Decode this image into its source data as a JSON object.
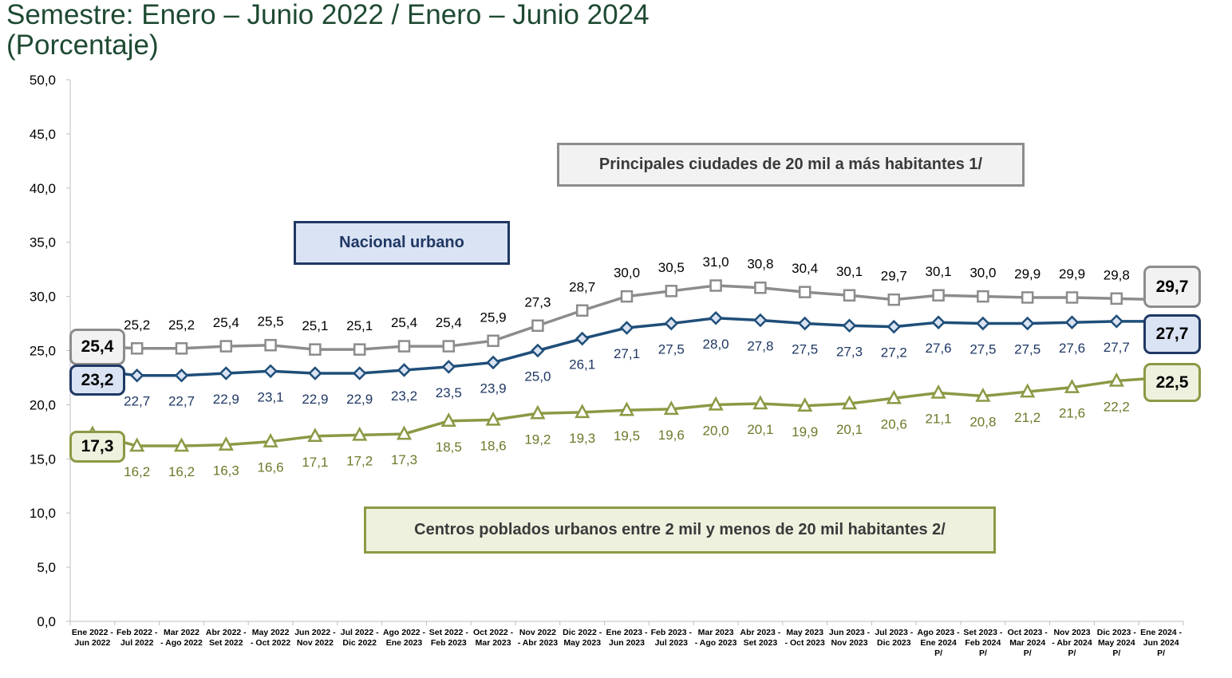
{
  "title": {
    "line1": "Semestre: Enero – Junio 2022 / Enero – Junio 2024",
    "line2": "(Porcentaje)"
  },
  "chart_data": {
    "type": "line",
    "ylim": [
      0,
      50
    ],
    "yticks": [
      "0,0",
      "5,0",
      "10,0",
      "15,0",
      "20,0",
      "25,0",
      "30,0",
      "35,0",
      "40,0",
      "45,0",
      "50,0"
    ],
    "categories": [
      [
        "Ene 2022 -",
        "Jun 2022"
      ],
      [
        "Feb 2022 -",
        "Jul 2022"
      ],
      [
        "Mar 2022",
        "- Ago 2022"
      ],
      [
        "Abr 2022 -",
        "Set 2022"
      ],
      [
        "May 2022",
        "- Oct 2022"
      ],
      [
        "Jun 2022 -",
        "Nov 2022"
      ],
      [
        "Jul 2022 -",
        "Dic 2022"
      ],
      [
        "Ago 2022 -",
        "Ene 2023"
      ],
      [
        "Set 2022 -",
        "Feb 2023"
      ],
      [
        "Oct 2022 -",
        "Mar 2023"
      ],
      [
        "Nov 2022",
        "- Abr 2023"
      ],
      [
        "Dic 2022 -",
        "May 2023"
      ],
      [
        "Ene 2023 -",
        "Jun 2023"
      ],
      [
        "Feb 2023 -",
        "Jul 2023"
      ],
      [
        "Mar 2023",
        "- Ago 2023"
      ],
      [
        "Abr 2023 -",
        "Set 2023"
      ],
      [
        "May 2023",
        "- Oct 2023"
      ],
      [
        "Jun 2023 -",
        "Nov 2023"
      ],
      [
        "Jul 2023 -",
        "Dic 2023"
      ],
      [
        "Ago 2023 -",
        "Ene 2024",
        "P/"
      ],
      [
        "Set 2023 -",
        "Feb 2024",
        "P/"
      ],
      [
        "Oct 2023 -",
        "Mar 2024",
        "P/"
      ],
      [
        "Nov 2023",
        "- Abr 2024",
        "P/"
      ],
      [
        "Dic 2023 -",
        "May 2024",
        "P/"
      ],
      [
        "Ene 2024 -",
        "Jun 2024",
        "P/"
      ]
    ],
    "series": [
      {
        "name": "Principales ciudades de 20 mil a más habitantes 1/",
        "color": "#8c8c8c",
        "marker": "square",
        "values": [
          25.4,
          25.2,
          25.2,
          25.4,
          25.5,
          25.1,
          25.1,
          25.4,
          25.4,
          25.9,
          27.3,
          28.7,
          30.0,
          30.5,
          31.0,
          30.8,
          30.4,
          30.1,
          29.7,
          30.1,
          30.0,
          29.9,
          29.9,
          29.8,
          29.7
        ],
        "labels": [
          "25,4",
          "25,2",
          "25,2",
          "25,4",
          "25,5",
          "25,1",
          "25,1",
          "25,4",
          "25,4",
          "25,9",
          "27,3",
          "28,7",
          "30,0",
          "30,5",
          "31,0",
          "30,8",
          "30,4",
          "30,1",
          "29,7",
          "30,1",
          "30,0",
          "29,9",
          "29,9",
          "29,8",
          "29,7"
        ]
      },
      {
        "name": "Nacional urbano",
        "color": "#1f4e79",
        "marker": "diamond",
        "values": [
          23.2,
          22.7,
          22.7,
          22.9,
          23.1,
          22.9,
          22.9,
          23.2,
          23.5,
          23.9,
          25.0,
          26.1,
          27.1,
          27.5,
          28.0,
          27.8,
          27.5,
          27.3,
          27.2,
          27.6,
          27.5,
          27.5,
          27.6,
          27.7,
          27.7
        ],
        "labels": [
          "23,2",
          "22,7",
          "22,7",
          "22,9",
          "23,1",
          "22,9",
          "22,9",
          "23,2",
          "23,5",
          "23,9",
          "25,0",
          "26,1",
          "27,1",
          "27,5",
          "28,0",
          "27,8",
          "27,5",
          "27,3",
          "27,2",
          "27,6",
          "27,5",
          "27,5",
          "27,6",
          "27,7",
          "27,7"
        ]
      },
      {
        "name": "Centros poblados urbanos entre 2 mil  y menos de 20 mil habitantes 2/",
        "color": "#8a9a45",
        "marker": "triangle",
        "values": [
          17.3,
          16.2,
          16.2,
          16.3,
          16.6,
          17.1,
          17.2,
          17.3,
          18.5,
          18.6,
          19.2,
          19.3,
          19.5,
          19.6,
          20.0,
          20.1,
          19.9,
          20.1,
          20.6,
          21.1,
          20.8,
          21.2,
          21.6,
          22.2,
          22.5
        ],
        "labels": [
          "17,3",
          "16,2",
          "16,2",
          "16,3",
          "16,6",
          "17,1",
          "17,2",
          "17,3",
          "18,5",
          "18,6",
          "19,2",
          "19,3",
          "19,5",
          "19,6",
          "20,0",
          "20,1",
          "19,9",
          "20,1",
          "20,6",
          "21,1",
          "20,8",
          "21,2",
          "21,6",
          "22,2",
          "22,5"
        ]
      }
    ]
  },
  "legend": {
    "principales": "Principales  ciudades  de 20 mil a más habitantes 1/",
    "nacional": "Nacional  urbano",
    "centros": "Centros poblados  urbanos  entre 2 mil  y menos de 20 mil habitantes 2/"
  },
  "styles": {
    "principales": {
      "border": "#8c8c8c",
      "fill": "#f2f2f2",
      "text": "#3a3a3a"
    },
    "nacional": {
      "border": "#1f3864",
      "fill": "#dae3f3",
      "text": "#1f3864"
    },
    "centros": {
      "border": "#8a9a45",
      "fill": "#eef1de",
      "text": "#3a3a3a"
    }
  }
}
